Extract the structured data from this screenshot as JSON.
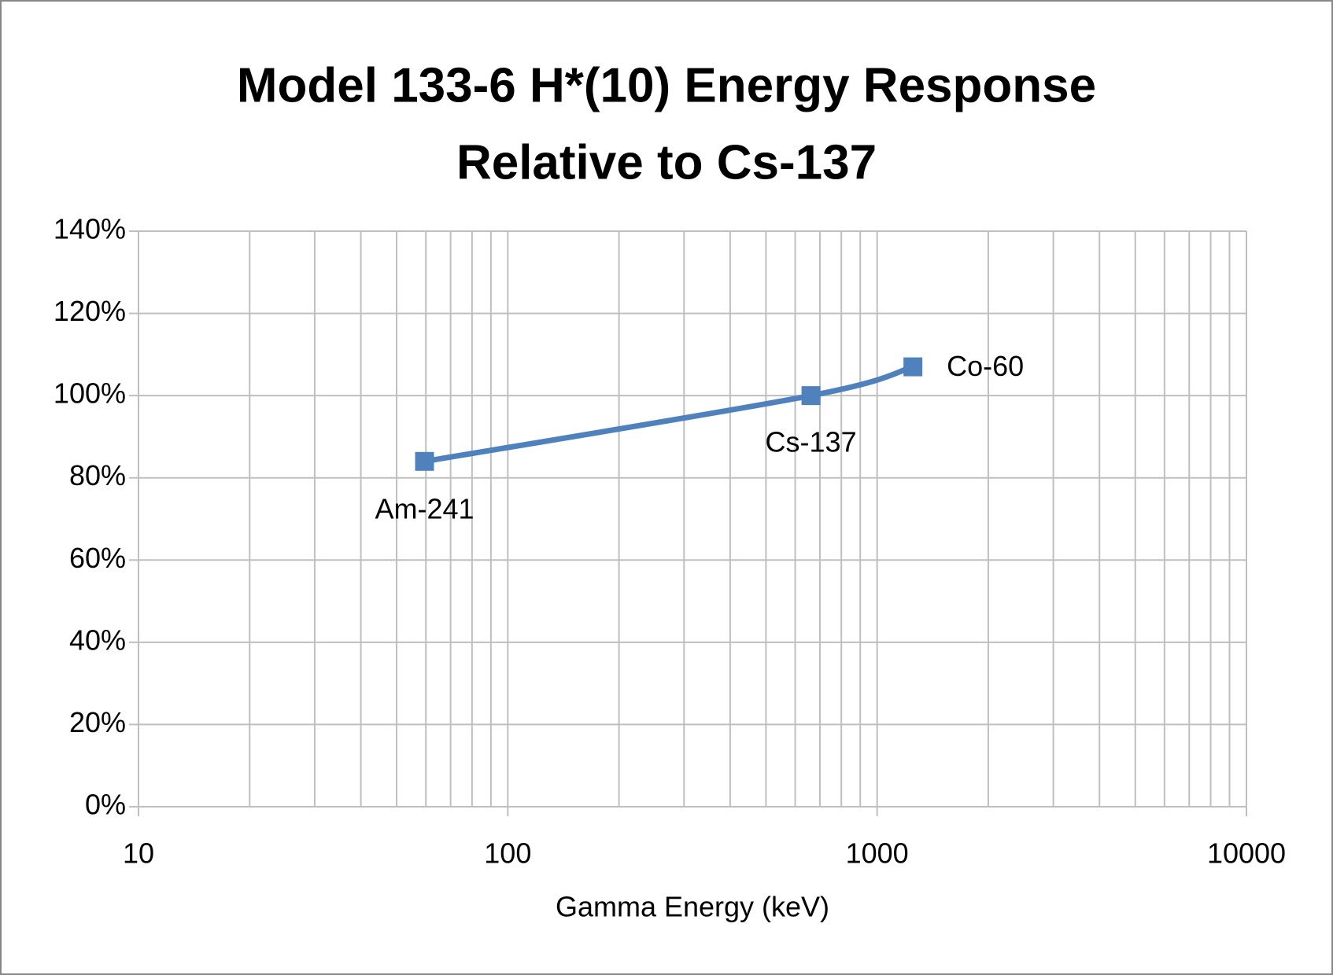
{
  "chart_data": {
    "type": "line",
    "title": [
      "Model 133-6 H*(10) Energy Response",
      "Relative to Cs-137"
    ],
    "x_label": "Gamma Energy (keV)",
    "x": [
      59.5,
      662,
      1250
    ],
    "values": [
      84,
      100,
      107
    ],
    "point_labels": [
      "Am-241",
      "Cs-137",
      "Co-60"
    ],
    "color": "#4f81bd",
    "x_log": true,
    "grid": true,
    "xlim": [
      10,
      10000
    ],
    "xticks": [
      10,
      100,
      1000,
      10000
    ],
    "xminor_ticks": [
      20,
      30,
      40,
      50,
      60,
      70,
      80,
      90,
      200,
      300,
      400,
      500,
      600,
      700,
      800,
      900,
      2000,
      3000,
      4000,
      5000,
      6000,
      7000,
      8000,
      9000
    ],
    "ylim": [
      0,
      140
    ],
    "yticks": [
      {
        "value": 0,
        "label": "0%"
      },
      {
        "value": 20,
        "label": "20%"
      },
      {
        "value": 40,
        "label": "40%"
      },
      {
        "value": 60,
        "label": "60%"
      },
      {
        "value": 80,
        "label": "80%"
      },
      {
        "value": 100,
        "label": "100%"
      },
      {
        "value": 120,
        "label": "120%"
      },
      {
        "value": 140,
        "label": "140%"
      }
    ]
  }
}
